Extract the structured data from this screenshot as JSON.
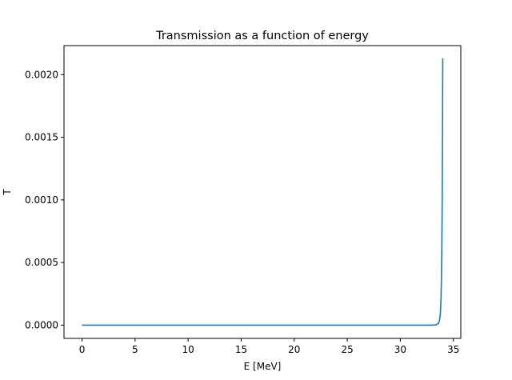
{
  "chart_data": {
    "type": "line",
    "title": "Transmission as a function of energy",
    "xlabel": "E [MeV]",
    "ylabel": "T",
    "xlim": [
      -1.7,
      35.7
    ],
    "ylim": [
      -0.000106,
      0.002232
    ],
    "xticks": [
      0,
      5,
      10,
      15,
      20,
      25,
      30,
      35
    ],
    "xtick_labels": [
      "0",
      "5",
      "10",
      "15",
      "20",
      "25",
      "30",
      "35"
    ],
    "yticks": [
      0.0,
      0.0005,
      0.001,
      0.0015,
      0.002
    ],
    "ytick_labels": [
      "0.0000",
      "0.0005",
      "0.0010",
      "0.0015",
      "0.0020"
    ],
    "grid": false,
    "series": [
      {
        "color": "#1f77b4",
        "x": [
          0,
          5,
          10,
          15,
          20,
          25,
          30,
          33.0,
          33.4,
          33.6,
          33.7,
          33.78,
          33.84,
          33.88,
          33.91,
          33.94,
          33.96,
          33.98,
          34.0
        ],
        "y": [
          0,
          0,
          0,
          0,
          0,
          0,
          0,
          0.0,
          3e-06,
          1.5e-05,
          4e-05,
          0.0001,
          0.00022,
          0.0004,
          0.0006,
          0.0009,
          0.0012,
          0.0016,
          0.00213
        ]
      }
    ]
  }
}
